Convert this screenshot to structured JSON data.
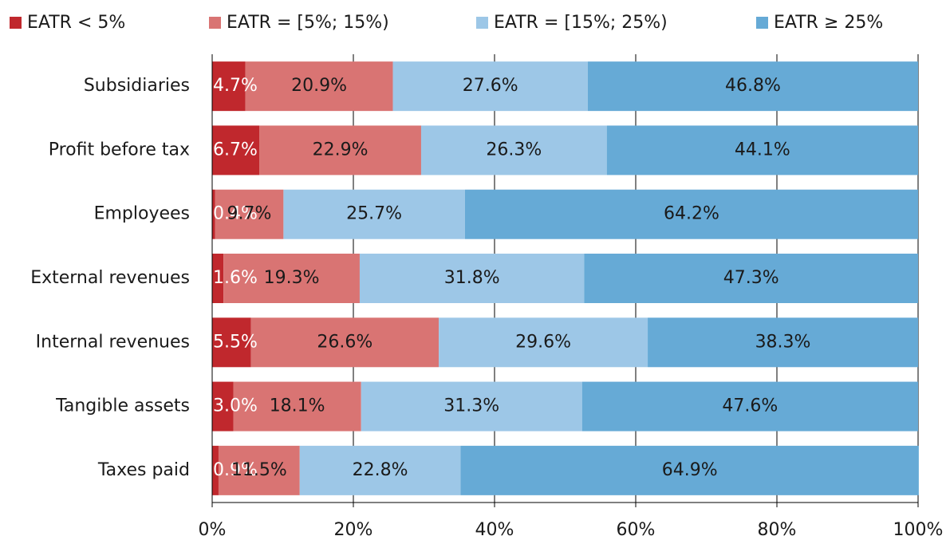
{
  "chart_data": {
    "type": "stacked-bar-horizontal",
    "categories": [
      "Subsidiaries",
      "Profit before tax",
      "Employees",
      "External revenues",
      "Internal revenues",
      "Tangible assets",
      "Taxes paid"
    ],
    "series": [
      {
        "name": "EATR < 5%",
        "color": "#c0282d",
        "values": [
          4.7,
          6.7,
          0.4,
          1.6,
          5.5,
          3.0,
          0.9
        ],
        "value_labels": [
          "4.7%",
          "6.7%",
          "0.4%",
          "1.6%",
          "5.5%",
          "3.0%",
          "0.9%"
        ]
      },
      {
        "name": "EATR = [5%; 15%)",
        "color": "#d97473",
        "values": [
          20.9,
          22.9,
          9.7,
          19.3,
          26.6,
          18.1,
          11.5
        ],
        "value_labels": [
          "20.9%",
          "22.9%",
          "9.7%",
          "19.3%",
          "26.6%",
          "18.1%",
          "11.5%"
        ]
      },
      {
        "name": "EATR = [15%; 25%)",
        "color": "#9dc7e7",
        "values": [
          27.6,
          26.3,
          25.7,
          31.8,
          29.6,
          31.3,
          22.8
        ],
        "value_labels": [
          "27.6%",
          "26.3%",
          "25.7%",
          "31.8%",
          "29.6%",
          "31.3%",
          "22.8%"
        ]
      },
      {
        "name": "EATR ≥ 25%",
        "color": "#66aad6",
        "values": [
          46.8,
          44.1,
          64.2,
          47.3,
          38.3,
          47.6,
          64.9
        ],
        "value_labels": [
          "46.8%",
          "44.1%",
          "64.2%",
          "47.3%",
          "38.3%",
          "47.6%",
          "64.9%"
        ]
      }
    ],
    "xlim": [
      0,
      100
    ],
    "xticks": [
      {
        "value": 0,
        "label": "0%"
      },
      {
        "value": 20,
        "label": "20%"
      },
      {
        "value": 40,
        "label": "40%"
      },
      {
        "value": 60,
        "label": "60%"
      },
      {
        "value": 80,
        "label": "80%"
      },
      {
        "value": 100,
        "label": "100%"
      }
    ],
    "grid": true,
    "legend": "top"
  }
}
